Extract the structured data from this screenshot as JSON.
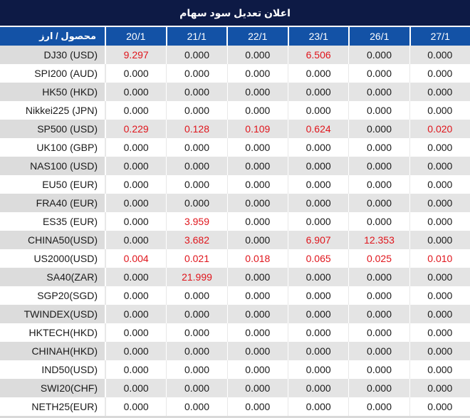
{
  "title": "اعلان تعديل سود سهام",
  "colors": {
    "navy": "#0D1A45",
    "header-blue": "#1352A6",
    "row-gray": "#E4E4E4",
    "label-gray": "#DCDCDC",
    "red": "#E0151C"
  },
  "table": {
    "corner_header": "محصول / ارز",
    "date_columns": [
      "20/1",
      "21/1",
      "22/1",
      "23/1",
      "26/1",
      "27/1"
    ],
    "rows": [
      {
        "label": "DJ30 (USD)",
        "values": [
          "9.297",
          "0.000",
          "0.000",
          "6.506",
          "0.000",
          "0.000"
        ],
        "red": [
          0,
          3
        ]
      },
      {
        "label": "SPI200 (AUD)",
        "values": [
          "0.000",
          "0.000",
          "0.000",
          "0.000",
          "0.000",
          "0.000"
        ],
        "red": []
      },
      {
        "label": "HK50 (HKD)",
        "values": [
          "0.000",
          "0.000",
          "0.000",
          "0.000",
          "0.000",
          "0.000"
        ],
        "red": []
      },
      {
        "label": "Nikkei225 (JPN)",
        "values": [
          "0.000",
          "0.000",
          "0.000",
          "0.000",
          "0.000",
          "0.000"
        ],
        "red": []
      },
      {
        "label": "SP500 (USD)",
        "values": [
          "0.229",
          "0.128",
          "0.109",
          "0.624",
          "0.000",
          "0.020"
        ],
        "red": [
          0,
          1,
          2,
          3,
          5
        ]
      },
      {
        "label": "UK100 (GBP)",
        "values": [
          "0.000",
          "0.000",
          "0.000",
          "0.000",
          "0.000",
          "0.000"
        ],
        "red": []
      },
      {
        "label": "NAS100 (USD)",
        "values": [
          "0.000",
          "0.000",
          "0.000",
          "0.000",
          "0.000",
          "0.000"
        ],
        "red": []
      },
      {
        "label": "EU50 (EUR)",
        "values": [
          "0.000",
          "0.000",
          "0.000",
          "0.000",
          "0.000",
          "0.000"
        ],
        "red": []
      },
      {
        "label": "FRA40 (EUR)",
        "values": [
          "0.000",
          "0.000",
          "0.000",
          "0.000",
          "0.000",
          "0.000"
        ],
        "red": []
      },
      {
        "label": "ES35 (EUR)",
        "values": [
          "0.000",
          "3.959",
          "0.000",
          "0.000",
          "0.000",
          "0.000"
        ],
        "red": [
          1
        ]
      },
      {
        "label": "CHINA50(USD)",
        "values": [
          "0.000",
          "3.682",
          "0.000",
          "6.907",
          "12.353",
          "0.000"
        ],
        "red": [
          1,
          3,
          4
        ]
      },
      {
        "label": "US2000(USD)",
        "values": [
          "0.004",
          "0.021",
          "0.018",
          "0.065",
          "0.025",
          "0.010"
        ],
        "red": [
          0,
          1,
          2,
          3,
          4,
          5
        ]
      },
      {
        "label": "SA40(ZAR)",
        "values": [
          "0.000",
          "21.999",
          "0.000",
          "0.000",
          "0.000",
          "0.000"
        ],
        "red": [
          1
        ]
      },
      {
        "label": "SGP20(SGD)",
        "values": [
          "0.000",
          "0.000",
          "0.000",
          "0.000",
          "0.000",
          "0.000"
        ],
        "red": []
      },
      {
        "label": "TWINDEX(USD)",
        "values": [
          "0.000",
          "0.000",
          "0.000",
          "0.000",
          "0.000",
          "0.000"
        ],
        "red": []
      },
      {
        "label": "HKTECH(HKD)",
        "values": [
          "0.000",
          "0.000",
          "0.000",
          "0.000",
          "0.000",
          "0.000"
        ],
        "red": []
      },
      {
        "label": "CHINAH(HKD)",
        "values": [
          "0.000",
          "0.000",
          "0.000",
          "0.000",
          "0.000",
          "0.000"
        ],
        "red": []
      },
      {
        "label": "IND50(USD)",
        "values": [
          "0.000",
          "0.000",
          "0.000",
          "0.000",
          "0.000",
          "0.000"
        ],
        "red": []
      },
      {
        "label": "SWI20(CHF)",
        "values": [
          "0.000",
          "0.000",
          "0.000",
          "0.000",
          "0.000",
          "0.000"
        ],
        "red": []
      },
      {
        "label": "NETH25(EUR)",
        "values": [
          "0.000",
          "0.000",
          "0.000",
          "0.000",
          "0.000",
          "0.000"
        ],
        "red": []
      }
    ]
  }
}
